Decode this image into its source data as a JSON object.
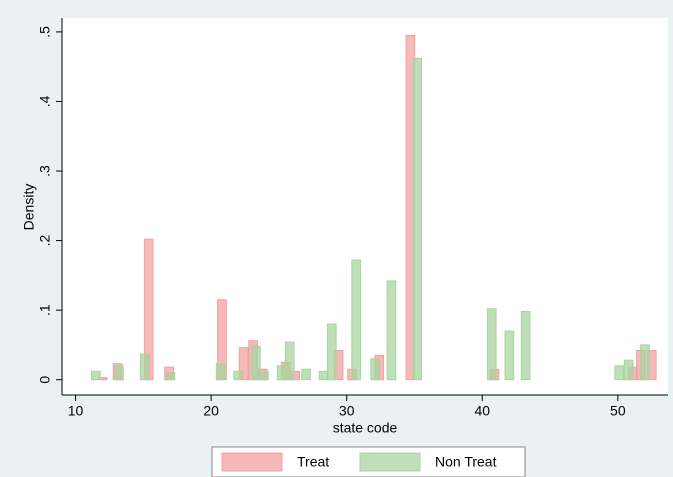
{
  "chart_data": {
    "type": "bar",
    "xlabel": "state code",
    "ylabel": "Density",
    "xlim": [
      9,
      53.7
    ],
    "ylim": [
      -0.022,
      0.52
    ],
    "xticks": [
      10,
      20,
      30,
      40,
      50
    ],
    "yticks": [
      {
        "value": 0,
        "label": "0"
      },
      {
        "value": 0.1,
        "label": ".1"
      },
      {
        "value": 0.2,
        "label": ".2"
      },
      {
        "value": 0.3,
        "label": ".3"
      },
      {
        "value": 0.4,
        "label": ".4"
      },
      {
        "value": 0.5,
        "label": ".5"
      }
    ],
    "series": [
      {
        "name": "Treat",
        "color": "#f4a0a0",
        "x": [
          12.0,
          13.1,
          15.4,
          16.9,
          20.8,
          22.4,
          23.1,
          23.8,
          25.5,
          26.2,
          29.4,
          30.4,
          32.4,
          34.7,
          40.9,
          51.1,
          51.7,
          52.5
        ],
        "values": [
          0.003,
          0.023,
          0.202,
          0.018,
          0.115,
          0.046,
          0.056,
          0.015,
          0.025,
          0.012,
          0.042,
          0.015,
          0.035,
          0.495,
          0.015,
          0.018,
          0.042,
          0.042
        ]
      },
      {
        "name": "Non Treat",
        "color": "#a8d4a0",
        "x": [
          11.5,
          13.2,
          15.1,
          17.0,
          20.7,
          22.0,
          23.3,
          23.9,
          25.2,
          25.8,
          27.0,
          28.3,
          28.9,
          30.7,
          32.1,
          33.3,
          35.2,
          40.7,
          42.0,
          43.2,
          50.1,
          50.8,
          52.0
        ],
        "values": [
          0.012,
          0.02,
          0.037,
          0.01,
          0.023,
          0.012,
          0.048,
          0.012,
          0.02,
          0.054,
          0.015,
          0.012,
          0.08,
          0.172,
          0.03,
          0.142,
          0.462,
          0.102,
          0.07,
          0.098,
          0.02,
          0.028,
          0.05
        ]
      }
    ]
  }
}
